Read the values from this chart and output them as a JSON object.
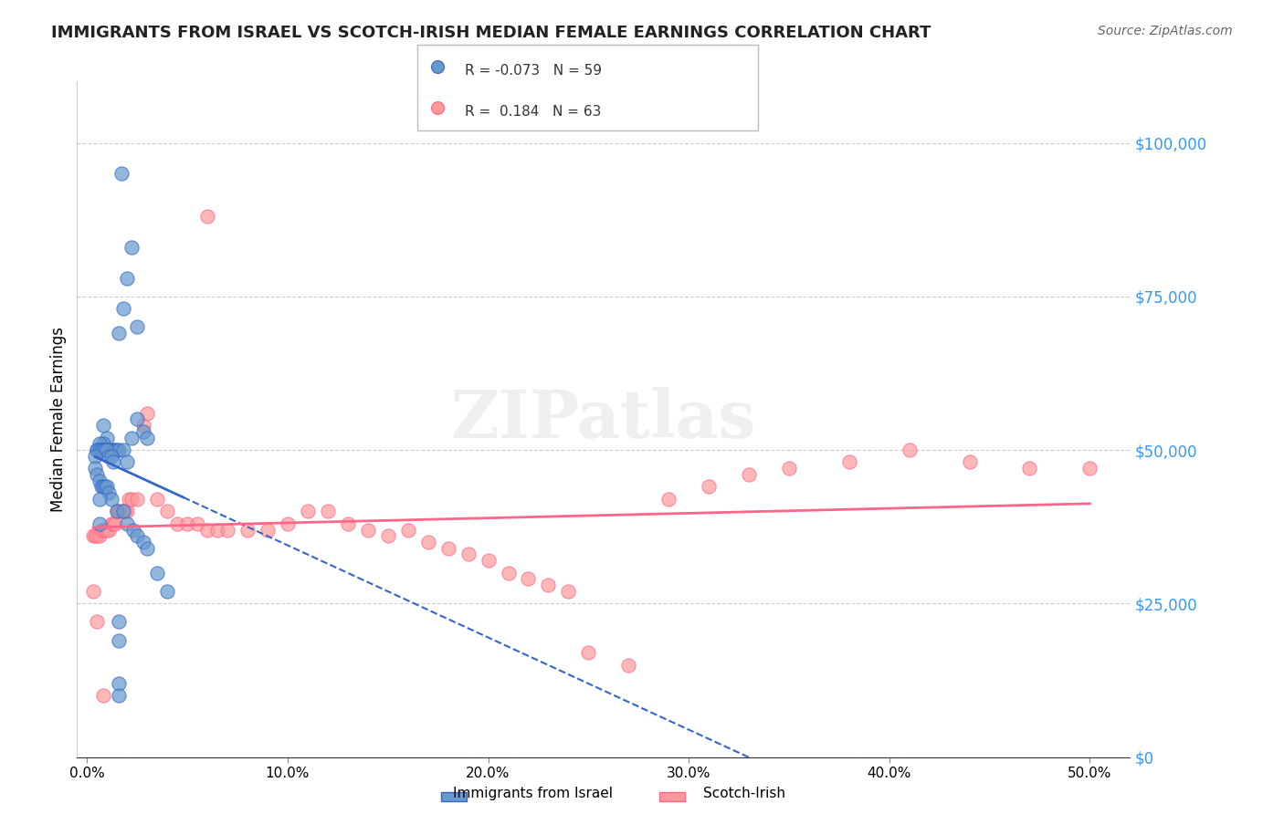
{
  "title": "IMMIGRANTS FROM ISRAEL VS SCOTCH-IRISH MEDIAN FEMALE EARNINGS CORRELATION CHART",
  "source": "Source: ZipAtlas.com",
  "xlabel_ticks": [
    "0.0%",
    "10.0%",
    "20.0%",
    "30.0%",
    "40.0%",
    "50.0%"
  ],
  "xlabel_vals": [
    0.0,
    0.1,
    0.2,
    0.3,
    0.4,
    0.5
  ],
  "ylabel": "Median Female Earnings",
  "ylabel_ticks": [
    "$0",
    "$25,000",
    "$50,000",
    "$75,000",
    "$100,000"
  ],
  "ylabel_vals": [
    0,
    25000,
    50000,
    75000,
    100000
  ],
  "ylim": [
    0,
    110000
  ],
  "xlim": [
    -0.005,
    0.52
  ],
  "legend_label1": "Immigrants from Israel",
  "legend_label2": "Scotch-Irish",
  "legend_R1": "R = -0.073",
  "legend_N1": "N = 59",
  "legend_R2": "R =  0.184",
  "legend_N2": "N = 63",
  "color_blue": "#6699CC",
  "color_pink": "#FF9999",
  "line_color_blue": "#3366CC",
  "line_color_pink": "#FF6688",
  "watermark": "ZIPatlas",
  "blue_x": [
    0.017,
    0.022,
    0.02,
    0.018,
    0.016,
    0.025,
    0.025,
    0.028,
    0.03,
    0.022,
    0.008,
    0.01,
    0.008,
    0.006,
    0.007,
    0.009,
    0.011,
    0.012,
    0.013,
    0.014,
    0.015,
    0.016,
    0.018,
    0.02,
    0.005,
    0.005,
    0.006,
    0.007,
    0.008,
    0.009,
    0.01,
    0.011,
    0.012,
    0.013,
    0.004,
    0.004,
    0.005,
    0.006,
    0.007,
    0.008,
    0.009,
    0.01,
    0.011,
    0.012,
    0.015,
    0.018,
    0.02,
    0.023,
    0.025,
    0.028,
    0.03,
    0.035,
    0.04,
    0.016,
    0.016,
    0.016,
    0.016,
    0.006,
    0.006
  ],
  "blue_y": [
    95000,
    83000,
    78000,
    73000,
    69000,
    70000,
    55000,
    53000,
    52000,
    52000,
    54000,
    52000,
    51000,
    51000,
    50000,
    50000,
    50000,
    50000,
    50000,
    50000,
    50000,
    50000,
    50000,
    48000,
    50000,
    50000,
    50000,
    50000,
    50000,
    50000,
    50000,
    49000,
    49000,
    48000,
    49000,
    47000,
    46000,
    45000,
    44000,
    44000,
    44000,
    44000,
    43000,
    42000,
    40000,
    40000,
    38000,
    37000,
    36000,
    35000,
    34000,
    30000,
    27000,
    22000,
    19000,
    12000,
    10000,
    42000,
    38000
  ],
  "pink_x": [
    0.003,
    0.004,
    0.005,
    0.006,
    0.007,
    0.008,
    0.009,
    0.01,
    0.011,
    0.012,
    0.013,
    0.014,
    0.015,
    0.016,
    0.017,
    0.018,
    0.019,
    0.02,
    0.021,
    0.022,
    0.025,
    0.028,
    0.03,
    0.035,
    0.04,
    0.045,
    0.05,
    0.055,
    0.06,
    0.065,
    0.07,
    0.08,
    0.09,
    0.1,
    0.11,
    0.12,
    0.13,
    0.14,
    0.15,
    0.16,
    0.17,
    0.18,
    0.19,
    0.2,
    0.21,
    0.22,
    0.23,
    0.24,
    0.25,
    0.27,
    0.29,
    0.31,
    0.33,
    0.35,
    0.38,
    0.41,
    0.44,
    0.47,
    0.5,
    0.003,
    0.005,
    0.008,
    0.06
  ],
  "pink_y": [
    36000,
    36000,
    36000,
    36000,
    37000,
    37000,
    37000,
    37000,
    37000,
    38000,
    38000,
    38000,
    40000,
    40000,
    40000,
    40000,
    40000,
    40000,
    42000,
    42000,
    42000,
    54000,
    56000,
    42000,
    40000,
    38000,
    38000,
    38000,
    37000,
    37000,
    37000,
    37000,
    37000,
    38000,
    40000,
    40000,
    38000,
    37000,
    36000,
    37000,
    35000,
    34000,
    33000,
    32000,
    30000,
    29000,
    28000,
    27000,
    17000,
    15000,
    42000,
    44000,
    46000,
    47000,
    48000,
    50000,
    48000,
    47000,
    47000,
    27000,
    22000,
    10000,
    88000
  ]
}
